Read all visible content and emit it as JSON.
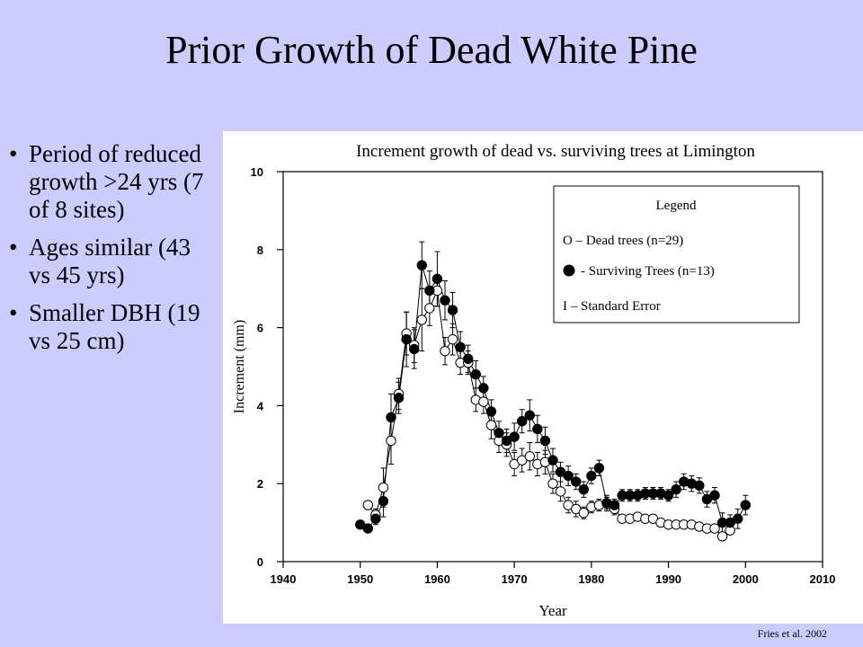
{
  "slide": {
    "title": "Prior Growth of Dead White Pine",
    "bullets": [
      "Period of reduced growth >24 yrs (7 of 8 sites)",
      "Ages similar (43 vs 45 yrs)",
      "Smaller DBH (19 vs 25 cm)"
    ],
    "citation": "Fries et al. 2002"
  },
  "chart_data": {
    "type": "line",
    "title": "Increment growth of dead vs. surviving trees at Limington",
    "xlabel": "Year",
    "ylabel": "Increment (mm)",
    "xlim": [
      1940,
      2010
    ],
    "ylim": [
      0,
      10
    ],
    "xticks": [
      "1940",
      "1950",
      "1960",
      "1970",
      "1980",
      "1990",
      "2000",
      "2010"
    ],
    "yticks": [
      "0",
      "2",
      "4",
      "6",
      "8",
      "10"
    ],
    "grid": false,
    "legend": {
      "title": "Legend",
      "placement": "top-right",
      "dead_label": "O – Dead trees (n=29)",
      "surviving_label": "- Surviving Trees (n=13)",
      "error_label": "I – Standard Error"
    },
    "series": [
      {
        "name": "Dead trees (n=29)",
        "marker": "open-circle",
        "x": [
          1951,
          1952,
          1953,
          1954,
          1955,
          1956,
          1957,
          1958,
          1959,
          1960,
          1961,
          1962,
          1963,
          1964,
          1965,
          1966,
          1967,
          1968,
          1969,
          1970,
          1971,
          1972,
          1973,
          1974,
          1975,
          1976,
          1977,
          1978,
          1979,
          1980,
          1981,
          1982,
          1983,
          1984,
          1985,
          1986,
          1987,
          1988,
          1989,
          1990,
          1991,
          1992,
          1993,
          1994,
          1995,
          1996,
          1997,
          1998
        ],
        "y": [
          1.45,
          1.2,
          1.9,
          3.1,
          4.3,
          5.85,
          5.55,
          6.2,
          6.5,
          6.95,
          5.4,
          5.7,
          5.1,
          5.1,
          4.15,
          4.1,
          3.5,
          3.1,
          3.0,
          2.5,
          2.6,
          2.7,
          2.5,
          2.55,
          2.0,
          1.8,
          1.45,
          1.35,
          1.25,
          1.4,
          1.45,
          1.5,
          1.35,
          1.1,
          1.1,
          1.15,
          1.1,
          1.1,
          1.0,
          0.95,
          0.95,
          0.95,
          0.95,
          0.9,
          0.85,
          0.85,
          0.65,
          0.8
        ],
        "se": [
          0.1,
          0.15,
          0.5,
          0.6,
          0.4,
          0.55,
          0.45,
          0.8,
          0.45,
          0.4,
          0.35,
          0.4,
          0.3,
          0.3,
          0.3,
          0.3,
          0.35,
          0.3,
          0.3,
          0.3,
          0.3,
          0.35,
          0.3,
          0.3,
          0.25,
          0.25,
          0.2,
          0.2,
          0.15,
          0.15,
          0.15,
          0.15,
          0.15,
          0.1,
          0.1,
          0.1,
          0.1,
          0.1,
          0.1,
          0.1,
          0.1,
          0.1,
          0.1,
          0.1,
          0.1,
          0.1,
          0.1,
          0.1
        ]
      },
      {
        "name": "Surviving Trees (n=13)",
        "marker": "filled-circle",
        "x": [
          1950,
          1951,
          1952,
          1953,
          1954,
          1955,
          1956,
          1957,
          1958,
          1959,
          1960,
          1961,
          1962,
          1963,
          1964,
          1965,
          1966,
          1967,
          1968,
          1969,
          1970,
          1971,
          1972,
          1973,
          1974,
          1975,
          1976,
          1977,
          1978,
          1979,
          1980,
          1981,
          1982,
          1983,
          1984,
          1985,
          1986,
          1987,
          1988,
          1989,
          1990,
          1991,
          1992,
          1993,
          1994,
          1995,
          1996,
          1997,
          1998,
          1999,
          2000
        ],
        "y": [
          0.95,
          0.85,
          1.1,
          1.55,
          3.7,
          4.2,
          5.7,
          5.45,
          7.6,
          6.95,
          7.25,
          6.7,
          6.45,
          5.5,
          5.2,
          4.8,
          4.45,
          3.85,
          3.3,
          3.1,
          3.2,
          3.6,
          3.75,
          3.4,
          3.1,
          2.6,
          2.3,
          2.2,
          2.05,
          1.85,
          2.2,
          2.4,
          1.5,
          1.45,
          1.7,
          1.7,
          1.7,
          1.75,
          1.75,
          1.75,
          1.7,
          1.85,
          2.05,
          2.0,
          1.95,
          1.6,
          1.7,
          1.0,
          1.0,
          1.1,
          1.45
        ],
        "se": [
          0.1,
          0.1,
          0.15,
          0.4,
          0.6,
          0.4,
          0.7,
          0.5,
          0.6,
          0.5,
          0.7,
          0.5,
          0.45,
          0.4,
          0.35,
          0.35,
          0.3,
          0.3,
          0.3,
          0.3,
          0.35,
          0.3,
          0.4,
          0.35,
          0.35,
          0.3,
          0.25,
          0.25,
          0.2,
          0.2,
          0.2,
          0.2,
          0.2,
          0.15,
          0.15,
          0.15,
          0.15,
          0.15,
          0.15,
          0.15,
          0.15,
          0.2,
          0.2,
          0.2,
          0.2,
          0.2,
          0.2,
          0.25,
          0.2,
          0.25,
          0.25
        ]
      }
    ]
  }
}
